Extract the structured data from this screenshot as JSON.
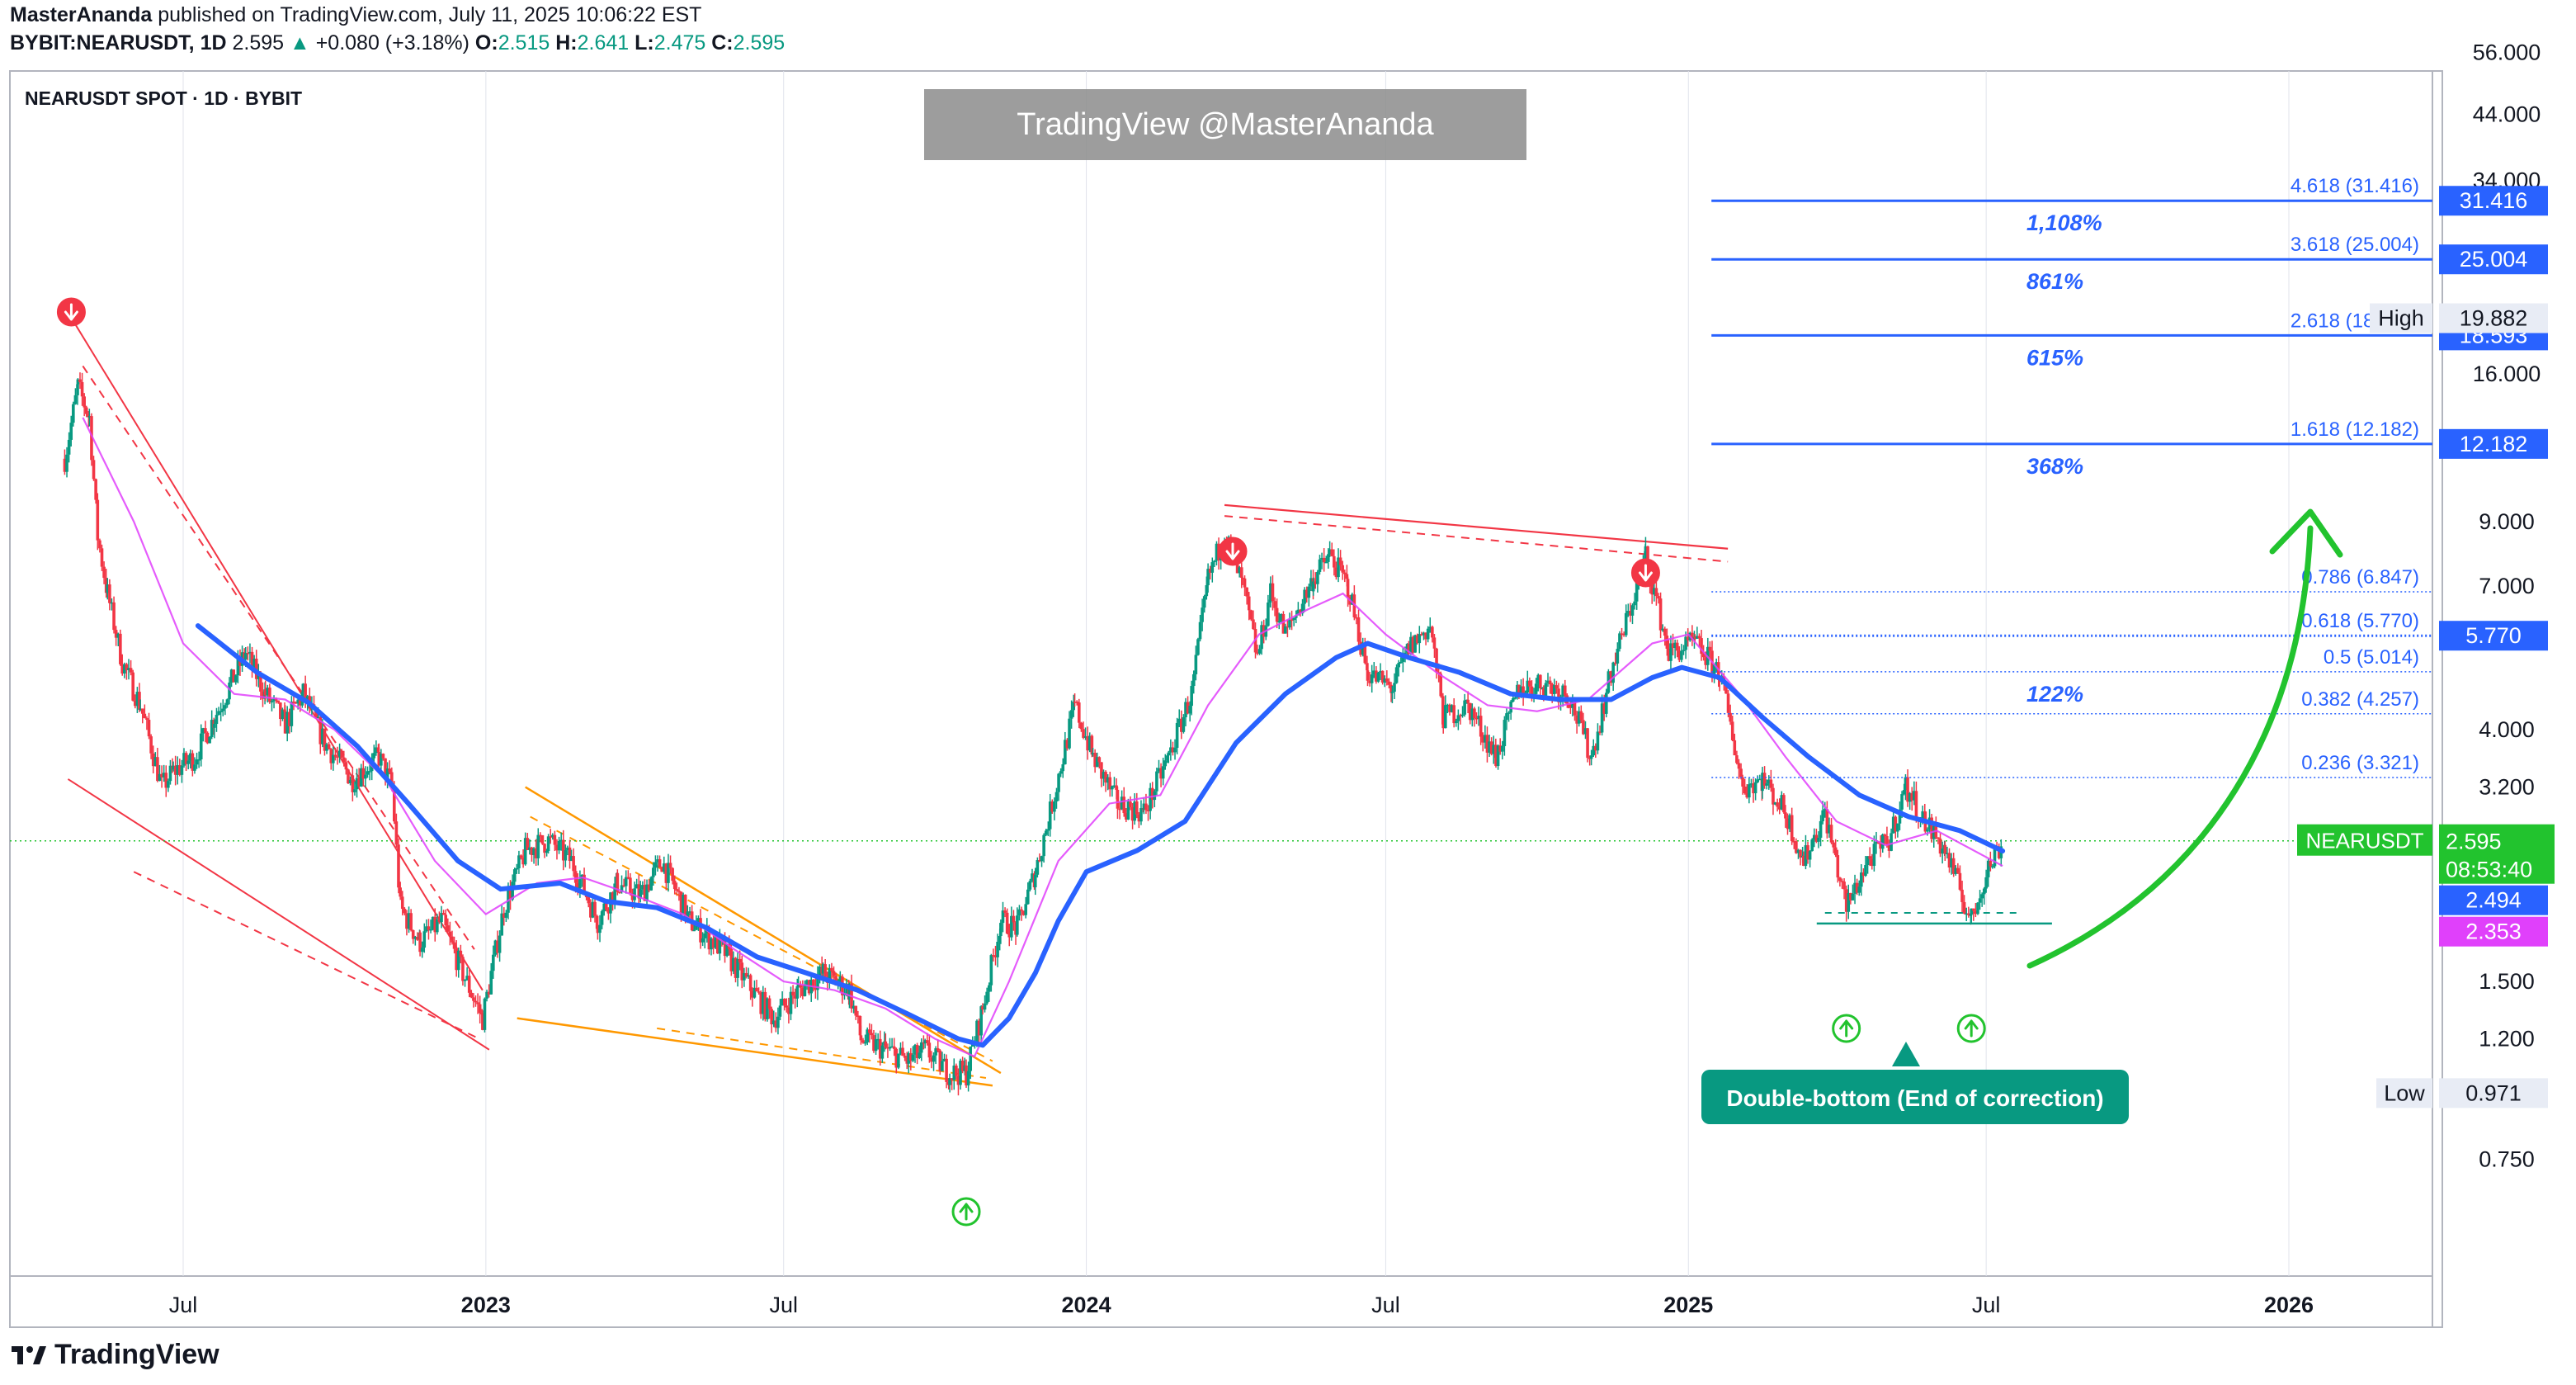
{
  "header": {
    "author": "MasterAnanda",
    "published": "published on TradingView.com, July 11, 2025 10:06:22 EST",
    "symbol": "BYBIT:NEARUSDT, 1D",
    "last": "2.595",
    "change": "+0.080 (+3.18%)",
    "o_label": "O:",
    "o": "2.515",
    "h_label": "H:",
    "h": "2.641",
    "l_label": "L:",
    "l": "2.475",
    "c_label": "C:",
    "c": "2.595"
  },
  "chart_title": "NEARUSDT SPOT · 1D · BYBIT",
  "watermark": "TradingView @MasterAnanda",
  "footer_logo": "TradingView",
  "colors": {
    "up": "#089981",
    "down": "#f23645",
    "ema": "#2962ff",
    "sma": "#e040fb",
    "fib": "#2962ff",
    "green_arrow": "#22c32e",
    "orange": "#ff9800",
    "red": "#f23645",
    "current_price": "#22c32e",
    "annotation": "#089981"
  },
  "chart_data": {
    "type": "candlestick",
    "symbol": "NEARUSDT",
    "exchange": "BYBIT",
    "timeframe": "1D",
    "scale": "log",
    "xaxis": {
      "ticks": [
        "Jul",
        "2023",
        "Jul",
        "2024",
        "Jul",
        "2025",
        "Jul",
        "2026"
      ],
      "tick_dates": [
        "2022-07-01",
        "2023-01-01",
        "2023-07-01",
        "2024-01-01",
        "2024-07-01",
        "2025-01-01",
        "2025-07-01",
        "2026-01-01"
      ]
    },
    "yaxis": {
      "ticks": [
        "56.000",
        "44.000",
        "34.000",
        "16.000",
        "9.000",
        "7.000",
        "4.000",
        "3.200",
        "1.500",
        "1.200",
        "0.750"
      ],
      "tick_values": [
        56,
        44,
        34,
        16,
        9,
        7,
        4,
        3.2,
        1.5,
        1.2,
        0.75
      ],
      "ylim": [
        0.64,
        57
      ]
    },
    "price_path": [
      [
        "2022-04-20",
        11.5
      ],
      [
        "2022-04-28",
        15.2
      ],
      [
        "2022-05-05",
        13.5
      ],
      [
        "2022-05-10",
        8.5
      ],
      [
        "2022-05-16",
        6.8
      ],
      [
        "2022-05-25",
        5.2
      ],
      [
        "2022-06-05",
        4.4
      ],
      [
        "2022-06-18",
        3.2
      ],
      [
        "2022-06-25",
        3.4
      ],
      [
        "2022-07-08",
        3.6
      ],
      [
        "2022-07-20",
        4.2
      ],
      [
        "2022-08-08",
        5.4
      ],
      [
        "2022-08-20",
        4.6
      ],
      [
        "2022-09-01",
        4.1
      ],
      [
        "2022-09-12",
        4.6
      ],
      [
        "2022-09-25",
        3.8
      ],
      [
        "2022-10-12",
        3.3
      ],
      [
        "2022-10-28",
        3.6
      ],
      [
        "2022-11-05",
        3.2
      ],
      [
        "2022-11-10",
        2.0
      ],
      [
        "2022-11-22",
        1.75
      ],
      [
        "2022-12-05",
        1.9
      ],
      [
        "2022-12-18",
        1.55
      ],
      [
        "2022-12-30",
        1.3
      ],
      [
        "2023-01-12",
        2.0
      ],
      [
        "2023-01-25",
        2.5
      ],
      [
        "2023-02-08",
        2.6
      ],
      [
        "2023-02-22",
        2.4
      ],
      [
        "2023-03-10",
        1.9
      ],
      [
        "2023-03-22",
        2.2
      ],
      [
        "2023-04-05",
        2.1
      ],
      [
        "2023-04-18",
        2.4
      ],
      [
        "2023-05-05",
        1.9
      ],
      [
        "2023-05-25",
        1.7
      ],
      [
        "2023-06-12",
        1.45
      ],
      [
        "2023-06-25",
        1.3
      ],
      [
        "2023-07-10",
        1.45
      ],
      [
        "2023-07-25",
        1.55
      ],
      [
        "2023-08-10",
        1.45
      ],
      [
        "2023-08-17",
        1.2
      ],
      [
        "2023-09-01",
        1.15
      ],
      [
        "2023-09-15",
        1.1
      ],
      [
        "2023-09-25",
        1.15
      ],
      [
        "2023-10-10",
        1.05
      ],
      [
        "2023-10-20",
        1.05
      ],
      [
        "2023-10-30",
        1.35
      ],
      [
        "2023-11-10",
        1.9
      ],
      [
        "2023-11-20",
        1.85
      ],
      [
        "2023-12-01",
        2.3
      ],
      [
        "2023-12-10",
        2.9
      ],
      [
        "2023-12-25",
        4.4
      ],
      [
        "2024-01-05",
        3.6
      ],
      [
        "2024-01-20",
        3.0
      ],
      [
        "2024-02-05",
        2.9
      ],
      [
        "2024-02-20",
        3.6
      ],
      [
        "2024-03-05",
        4.6
      ],
      [
        "2024-03-15",
        7.2
      ],
      [
        "2024-03-25",
        8.6
      ],
      [
        "2024-04-05",
        7.0
      ],
      [
        "2024-04-14",
        5.3
      ],
      [
        "2024-04-22",
        6.8
      ],
      [
        "2024-05-01",
        5.8
      ],
      [
        "2024-05-18",
        7.2
      ],
      [
        "2024-05-28",
        7.9
      ],
      [
        "2024-06-08",
        7.0
      ],
      [
        "2024-06-20",
        5.0
      ],
      [
        "2024-07-05",
        4.7
      ],
      [
        "2024-07-15",
        5.5
      ],
      [
        "2024-07-28",
        6.0
      ],
      [
        "2024-08-05",
        4.2
      ],
      [
        "2024-08-20",
        4.4
      ],
      [
        "2024-09-06",
        3.6
      ],
      [
        "2024-09-20",
        4.7
      ],
      [
        "2024-10-05",
        4.8
      ],
      [
        "2024-10-20",
        4.6
      ],
      [
        "2024-11-03",
        3.6
      ],
      [
        "2024-11-15",
        5.0
      ],
      [
        "2024-11-28",
        6.6
      ],
      [
        "2024-12-06",
        7.9
      ],
      [
        "2024-12-20",
        5.4
      ],
      [
        "2025-01-05",
        5.6
      ],
      [
        "2025-01-20",
        5.0
      ],
      [
        "2025-02-03",
        3.2
      ],
      [
        "2025-02-15",
        3.3
      ],
      [
        "2025-03-01",
        2.9
      ],
      [
        "2025-03-12",
        2.4
      ],
      [
        "2025-03-25",
        2.9
      ],
      [
        "2025-04-07",
        2.0
      ],
      [
        "2025-04-20",
        2.4
      ],
      [
        "2025-05-03",
        2.6
      ],
      [
        "2025-05-13",
        3.2
      ],
      [
        "2025-05-25",
        2.8
      ],
      [
        "2025-06-06",
        2.5
      ],
      [
        "2025-06-22",
        1.9
      ],
      [
        "2025-07-01",
        2.3
      ],
      [
        "2025-07-11",
        2.595
      ]
    ],
    "ema_path": [
      [
        "2022-07-10",
        6.0
      ],
      [
        "2022-08-15",
        5.0
      ],
      [
        "2022-09-15",
        4.45
      ],
      [
        "2022-10-15",
        3.75
      ],
      [
        "2022-11-15",
        3.0
      ],
      [
        "2022-12-15",
        2.4
      ],
      [
        "2023-01-10",
        2.15
      ],
      [
        "2023-02-15",
        2.2
      ],
      [
        "2023-03-15",
        2.05
      ],
      [
        "2023-04-15",
        2.0
      ],
      [
        "2023-05-15",
        1.85
      ],
      [
        "2023-06-15",
        1.65
      ],
      [
        "2023-07-15",
        1.55
      ],
      [
        "2023-08-15",
        1.45
      ],
      [
        "2023-09-15",
        1.32
      ],
      [
        "2023-10-15",
        1.2
      ],
      [
        "2023-10-30",
        1.17
      ],
      [
        "2023-11-15",
        1.3
      ],
      [
        "2023-12-01",
        1.55
      ],
      [
        "2023-12-15",
        1.9
      ],
      [
        "2024-01-01",
        2.3
      ],
      [
        "2024-02-01",
        2.5
      ],
      [
        "2024-03-01",
        2.8
      ],
      [
        "2024-04-01",
        3.8
      ],
      [
        "2024-05-01",
        4.6
      ],
      [
        "2024-06-01",
        5.3
      ],
      [
        "2024-06-20",
        5.6
      ],
      [
        "2024-07-15",
        5.3
      ],
      [
        "2024-08-15",
        5.0
      ],
      [
        "2024-09-15",
        4.6
      ],
      [
        "2024-10-15",
        4.5
      ],
      [
        "2024-11-15",
        4.5
      ],
      [
        "2024-12-10",
        4.9
      ],
      [
        "2024-12-28",
        5.1
      ],
      [
        "2025-01-20",
        4.9
      ],
      [
        "2025-02-15",
        4.2
      ],
      [
        "2025-03-15",
        3.6
      ],
      [
        "2025-04-15",
        3.1
      ],
      [
        "2025-05-15",
        2.85
      ],
      [
        "2025-06-15",
        2.7
      ],
      [
        "2025-07-11",
        2.494
      ]
    ],
    "sma_path": [
      [
        "2022-05-01",
        13.5
      ],
      [
        "2022-06-01",
        9.0
      ],
      [
        "2022-07-01",
        5.6
      ],
      [
        "2022-08-01",
        4.6
      ],
      [
        "2022-09-01",
        4.5
      ],
      [
        "2022-10-01",
        4.0
      ],
      [
        "2022-11-01",
        3.3
      ],
      [
        "2022-12-01",
        2.4
      ],
      [
        "2023-01-01",
        1.95
      ],
      [
        "2023-02-01",
        2.2
      ],
      [
        "2023-03-01",
        2.25
      ],
      [
        "2023-04-01",
        2.1
      ],
      [
        "2023-05-01",
        1.95
      ],
      [
        "2023-06-01",
        1.7
      ],
      [
        "2023-07-01",
        1.5
      ],
      [
        "2023-08-01",
        1.45
      ],
      [
        "2023-09-01",
        1.35
      ],
      [
        "2023-10-01",
        1.2
      ],
      [
        "2023-10-25",
        1.12
      ],
      [
        "2023-11-15",
        1.5
      ],
      [
        "2023-12-15",
        2.4
      ],
      [
        "2024-01-15",
        3.0
      ],
      [
        "2024-02-15",
        3.1
      ],
      [
        "2024-03-15",
        4.4
      ],
      [
        "2024-04-15",
        5.8
      ],
      [
        "2024-05-15",
        6.4
      ],
      [
        "2024-06-05",
        6.8
      ],
      [
        "2024-07-01",
        5.8
      ],
      [
        "2024-08-01",
        5.0
      ],
      [
        "2024-09-01",
        4.4
      ],
      [
        "2024-10-01",
        4.3
      ],
      [
        "2024-11-01",
        4.5
      ],
      [
        "2024-12-10",
        5.6
      ],
      [
        "2025-01-01",
        5.8
      ],
      [
        "2025-02-01",
        4.6
      ],
      [
        "2025-03-01",
        3.6
      ],
      [
        "2025-04-01",
        2.8
      ],
      [
        "2025-05-01",
        2.55
      ],
      [
        "2025-06-01",
        2.7
      ],
      [
        "2025-07-11",
        2.353
      ]
    ],
    "fib_levels": [
      {
        "label": "4.618 (31.416)",
        "value": 31.416,
        "pct": "1,108%",
        "badge": true
      },
      {
        "label": "3.618 (25.004)",
        "value": 25.004,
        "pct": "861%",
        "badge": true
      },
      {
        "label": "2.618 (18.593)",
        "value": 18.593,
        "pct": "615%",
        "badge": true
      },
      {
        "label": "1.618 (12.182)",
        "value": 12.182,
        "pct": "368%",
        "badge": true
      },
      {
        "label": "0.786 (6.847)",
        "value": 6.847,
        "pct": "",
        "badge": false
      },
      {
        "label": "0.618 (5.770)",
        "value": 5.77,
        "pct": "",
        "badge": true
      },
      {
        "label": "0.5 (5.014)",
        "value": 5.014,
        "pct": "122%",
        "badge": false
      },
      {
        "label": "0.382 (4.257)",
        "value": 4.257,
        "pct": "",
        "badge": false
      },
      {
        "label": "0.236 (3.321)",
        "value": 3.321,
        "pct": "",
        "badge": false
      }
    ],
    "price_badges": [
      {
        "text": "31.416",
        "value": 31.416,
        "bg": "#2962ff"
      },
      {
        "text": "25.004",
        "value": 25.004,
        "bg": "#2962ff"
      },
      {
        "text": "18.593",
        "value": 18.593,
        "bg": "#2962ff"
      },
      {
        "text": "12.182",
        "value": 12.182,
        "bg": "#2962ff"
      },
      {
        "text": "5.770",
        "value": 5.77,
        "bg": "#2962ff"
      },
      {
        "text": "2.494",
        "value": 2.494,
        "bg": "#2962ff"
      },
      {
        "text": "2.353",
        "value": 2.353,
        "bg": "#e040fb"
      }
    ],
    "high": {
      "label": "High",
      "value": "19.882"
    },
    "low": {
      "label": "Low",
      "value": "0.971"
    },
    "current": {
      "symbol": "NEARUSDT",
      "price": "2.595",
      "countdown": "08:53:40",
      "value": 2.595
    },
    "annotation": "Double-bottom (End of correction)",
    "red_markers": [
      "2022-04-24",
      "2024-03-30",
      "2024-12-06"
    ],
    "green_markers": [
      "2023-10-20",
      "2025-04-07",
      "2025-06-22"
    ]
  }
}
